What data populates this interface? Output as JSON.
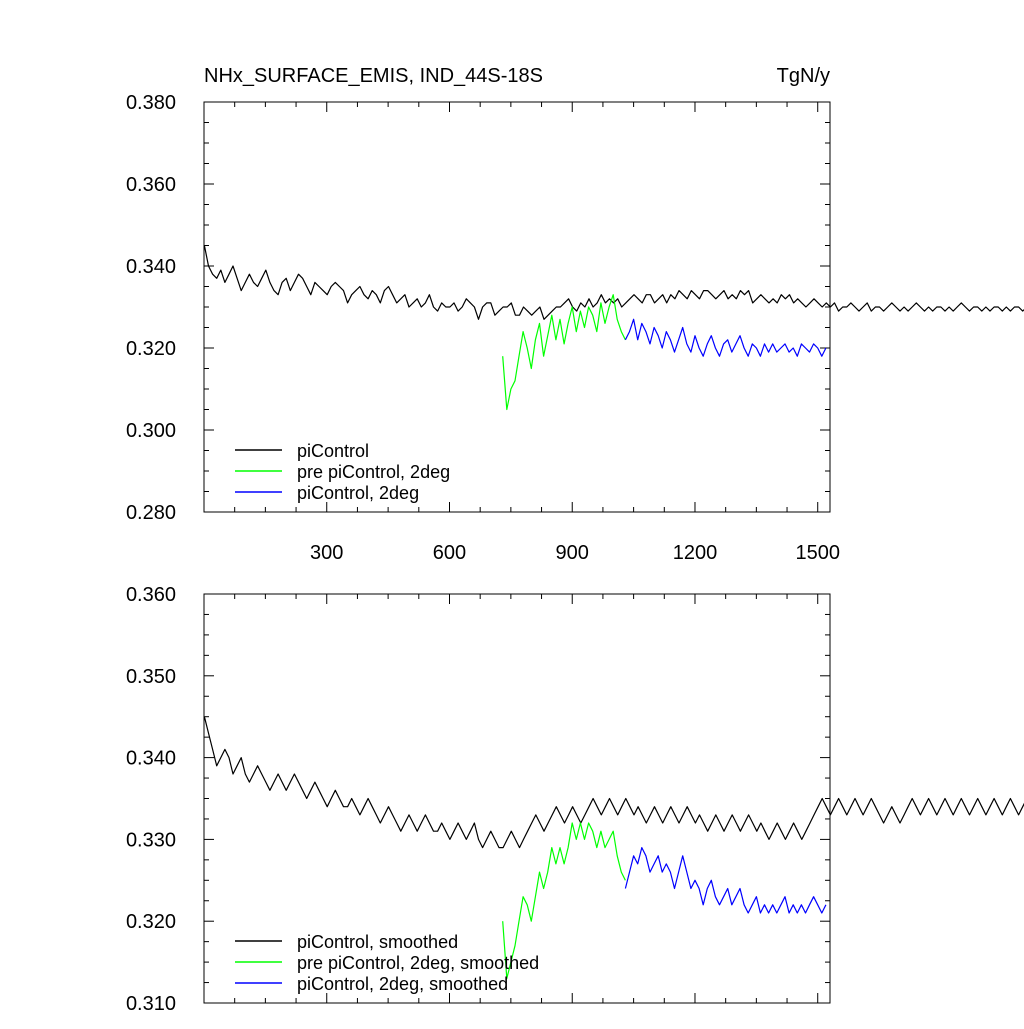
{
  "chart_data": [
    {
      "type": "line",
      "title": "NHx_SURFACE_EMIS, IND_44S-18S",
      "units": "TgN/y",
      "xlabel": "",
      "ylabel": "",
      "xlim": [
        0,
        1530
      ],
      "ylim": [
        0.28,
        0.38
      ],
      "xticks": [
        300,
        600,
        900,
        1200,
        1500
      ],
      "xtick_labels": [
        "300",
        "600",
        "900",
        "1200",
        "1500"
      ],
      "yticks": [
        0.28,
        0.3,
        0.32,
        0.34,
        0.36,
        0.38
      ],
      "ytick_labels": [
        "0.280",
        "0.300",
        "0.320",
        "0.340",
        "0.360",
        "0.380"
      ],
      "legend_position": "bottom-left",
      "series": [
        {
          "name": "piControl",
          "color": "#000000",
          "x_start": 1,
          "x_step": 10,
          "values": [
            0.345,
            0.34,
            0.338,
            0.337,
            0.339,
            0.336,
            0.338,
            0.34,
            0.337,
            0.334,
            0.336,
            0.338,
            0.336,
            0.335,
            0.337,
            0.339,
            0.336,
            0.334,
            0.333,
            0.336,
            0.337,
            0.334,
            0.336,
            0.338,
            0.337,
            0.335,
            0.333,
            0.336,
            0.335,
            0.334,
            0.333,
            0.335,
            0.336,
            0.335,
            0.334,
            0.331,
            0.333,
            0.334,
            0.335,
            0.333,
            0.332,
            0.334,
            0.333,
            0.331,
            0.334,
            0.335,
            0.333,
            0.331,
            0.332,
            0.333,
            0.33,
            0.331,
            0.332,
            0.33,
            0.331,
            0.333,
            0.33,
            0.329,
            0.331,
            0.33,
            0.33,
            0.331,
            0.329,
            0.33,
            0.332,
            0.331,
            0.33,
            0.327,
            0.33,
            0.331,
            0.331,
            0.328,
            0.329,
            0.33,
            0.33,
            0.331,
            0.328,
            0.328,
            0.33,
            0.329,
            0.328,
            0.329,
            0.33,
            0.327,
            0.328,
            0.329,
            0.33,
            0.33,
            0.331,
            0.332,
            0.33,
            0.329,
            0.331,
            0.33,
            0.332,
            0.33,
            0.331,
            0.333,
            0.331,
            0.332,
            0.331,
            0.332,
            0.33,
            0.331,
            0.332,
            0.333,
            0.332,
            0.331,
            0.333,
            0.333,
            0.331,
            0.332,
            0.333,
            0.331,
            0.333,
            0.332,
            0.334,
            0.333,
            0.332,
            0.334,
            0.333,
            0.332,
            0.334,
            0.334,
            0.333,
            0.332,
            0.333,
            0.334,
            0.332,
            0.333,
            0.332,
            0.334,
            0.333,
            0.334,
            0.331,
            0.332,
            0.333,
            0.332,
            0.331,
            0.332,
            0.331,
            0.333,
            0.332,
            0.333,
            0.331,
            0.332,
            0.331,
            0.33,
            0.331,
            0.332,
            0.331,
            0.33,
            0.331,
            0.33,
            0.331,
            0.329,
            0.33,
            0.33,
            0.331,
            0.33,
            0.329,
            0.33,
            0.331,
            0.329,
            0.33,
            0.33,
            0.329,
            0.33,
            0.331,
            0.33,
            0.329,
            0.33,
            0.329,
            0.33,
            0.331,
            0.33,
            0.329,
            0.33,
            0.329,
            0.33,
            0.33,
            0.329,
            0.33,
            0.329,
            0.33,
            0.331,
            0.33,
            0.329,
            0.33,
            0.33,
            0.329,
            0.33,
            0.329,
            0.33,
            0.33,
            0.329,
            0.33,
            0.329,
            0.33,
            0.33,
            0.329,
            0.33,
            0.329,
            0.33
          ]
        },
        {
          "name": "pre piControl, 2deg",
          "color": "#00ff00",
          "x_start": 730,
          "x_step": 10,
          "values": [
            0.318,
            0.305,
            0.31,
            0.312,
            0.318,
            0.324,
            0.32,
            0.315,
            0.322,
            0.326,
            0.318,
            0.323,
            0.328,
            0.322,
            0.327,
            0.321,
            0.326,
            0.33,
            0.324,
            0.329,
            0.325,
            0.33,
            0.328,
            0.324,
            0.331,
            0.326,
            0.33,
            0.333,
            0.327,
            0.324,
            0.322
          ]
        },
        {
          "name": "piControl, 2deg",
          "color": "#0000ff",
          "x_start": 1030,
          "x_step": 10,
          "values": [
            0.322,
            0.324,
            0.327,
            0.322,
            0.326,
            0.324,
            0.321,
            0.325,
            0.323,
            0.32,
            0.324,
            0.322,
            0.319,
            0.322,
            0.325,
            0.321,
            0.319,
            0.323,
            0.32,
            0.318,
            0.321,
            0.323,
            0.32,
            0.318,
            0.321,
            0.322,
            0.319,
            0.321,
            0.323,
            0.32,
            0.318,
            0.321,
            0.32,
            0.318,
            0.321,
            0.319,
            0.321,
            0.319,
            0.32,
            0.321,
            0.319,
            0.32,
            0.318,
            0.321,
            0.32,
            0.319,
            0.321,
            0.32,
            0.318,
            0.32
          ]
        }
      ]
    },
    {
      "type": "line",
      "title": "",
      "xlim": [
        0,
        1530
      ],
      "ylim": [
        0.31,
        0.36
      ],
      "xticks": [
        300,
        600,
        900,
        1200,
        1500
      ],
      "xtick_labels": [],
      "yticks": [
        0.31,
        0.32,
        0.33,
        0.34,
        0.35,
        0.36
      ],
      "ytick_labels": [
        "0.310",
        "0.320",
        "0.330",
        "0.340",
        "0.350",
        "0.360"
      ],
      "legend_position": "bottom-left",
      "series": [
        {
          "name": "piControl, smoothed",
          "color": "#000000",
          "x_start": 1,
          "x_step": 10,
          "values": [
            0.345,
            0.343,
            0.341,
            0.339,
            0.34,
            0.341,
            0.34,
            0.338,
            0.339,
            0.34,
            0.338,
            0.337,
            0.338,
            0.339,
            0.338,
            0.337,
            0.336,
            0.337,
            0.338,
            0.337,
            0.336,
            0.337,
            0.338,
            0.337,
            0.336,
            0.335,
            0.336,
            0.337,
            0.336,
            0.335,
            0.334,
            0.335,
            0.336,
            0.335,
            0.334,
            0.334,
            0.335,
            0.334,
            0.333,
            0.334,
            0.335,
            0.334,
            0.333,
            0.332,
            0.333,
            0.334,
            0.333,
            0.332,
            0.331,
            0.332,
            0.333,
            0.332,
            0.331,
            0.332,
            0.333,
            0.332,
            0.331,
            0.331,
            0.332,
            0.331,
            0.33,
            0.331,
            0.332,
            0.331,
            0.33,
            0.331,
            0.332,
            0.33,
            0.329,
            0.33,
            0.331,
            0.33,
            0.329,
            0.329,
            0.33,
            0.331,
            0.33,
            0.329,
            0.33,
            0.331,
            0.332,
            0.333,
            0.332,
            0.331,
            0.332,
            0.333,
            0.334,
            0.333,
            0.332,
            0.333,
            0.334,
            0.333,
            0.332,
            0.333,
            0.334,
            0.335,
            0.334,
            0.333,
            0.334,
            0.335,
            0.334,
            0.333,
            0.334,
            0.335,
            0.334,
            0.333,
            0.334,
            0.333,
            0.332,
            0.333,
            0.334,
            0.333,
            0.332,
            0.333,
            0.334,
            0.333,
            0.332,
            0.333,
            0.334,
            0.333,
            0.332,
            0.333,
            0.332,
            0.331,
            0.332,
            0.333,
            0.332,
            0.331,
            0.332,
            0.333,
            0.332,
            0.331,
            0.332,
            0.333,
            0.332,
            0.331,
            0.332,
            0.331,
            0.33,
            0.331,
            0.332,
            0.331,
            0.33,
            0.331,
            0.332,
            0.331,
            0.33,
            0.331,
            0.332,
            0.333,
            0.334,
            0.335,
            0.334,
            0.333,
            0.334,
            0.335,
            0.334,
            0.333,
            0.334,
            0.335,
            0.334,
            0.333,
            0.334,
            0.335,
            0.334,
            0.333,
            0.332,
            0.333,
            0.334,
            0.333,
            0.332,
            0.333,
            0.334,
            0.335,
            0.334,
            0.333,
            0.334,
            0.335,
            0.334,
            0.333,
            0.334,
            0.335,
            0.334,
            0.333,
            0.334,
            0.335,
            0.334,
            0.333,
            0.334,
            0.335,
            0.334,
            0.333,
            0.334,
            0.335,
            0.334,
            0.333,
            0.334,
            0.335,
            0.334,
            0.333,
            0.334,
            0.335,
            0.334,
            0.333
          ]
        },
        {
          "name": "pre piControl, 2deg, smoothed",
          "color": "#00ff00",
          "x_start": 730,
          "x_step": 10,
          "values": [
            0.32,
            0.313,
            0.315,
            0.317,
            0.32,
            0.323,
            0.322,
            0.32,
            0.323,
            0.326,
            0.324,
            0.326,
            0.329,
            0.327,
            0.329,
            0.327,
            0.329,
            0.332,
            0.33,
            0.332,
            0.33,
            0.332,
            0.331,
            0.329,
            0.331,
            0.329,
            0.33,
            0.331,
            0.328,
            0.326,
            0.325
          ]
        },
        {
          "name": "piControl, 2deg, smoothed",
          "color": "#0000ff",
          "x_start": 1030,
          "x_step": 10,
          "values": [
            0.324,
            0.326,
            0.328,
            0.327,
            0.329,
            0.328,
            0.326,
            0.327,
            0.328,
            0.326,
            0.327,
            0.326,
            0.324,
            0.326,
            0.328,
            0.326,
            0.324,
            0.325,
            0.324,
            0.322,
            0.324,
            0.325,
            0.323,
            0.322,
            0.323,
            0.324,
            0.322,
            0.323,
            0.324,
            0.322,
            0.321,
            0.322,
            0.323,
            0.321,
            0.322,
            0.321,
            0.322,
            0.321,
            0.322,
            0.323,
            0.321,
            0.322,
            0.321,
            0.322,
            0.321,
            0.322,
            0.323,
            0.322,
            0.321,
            0.322
          ]
        }
      ]
    }
  ]
}
